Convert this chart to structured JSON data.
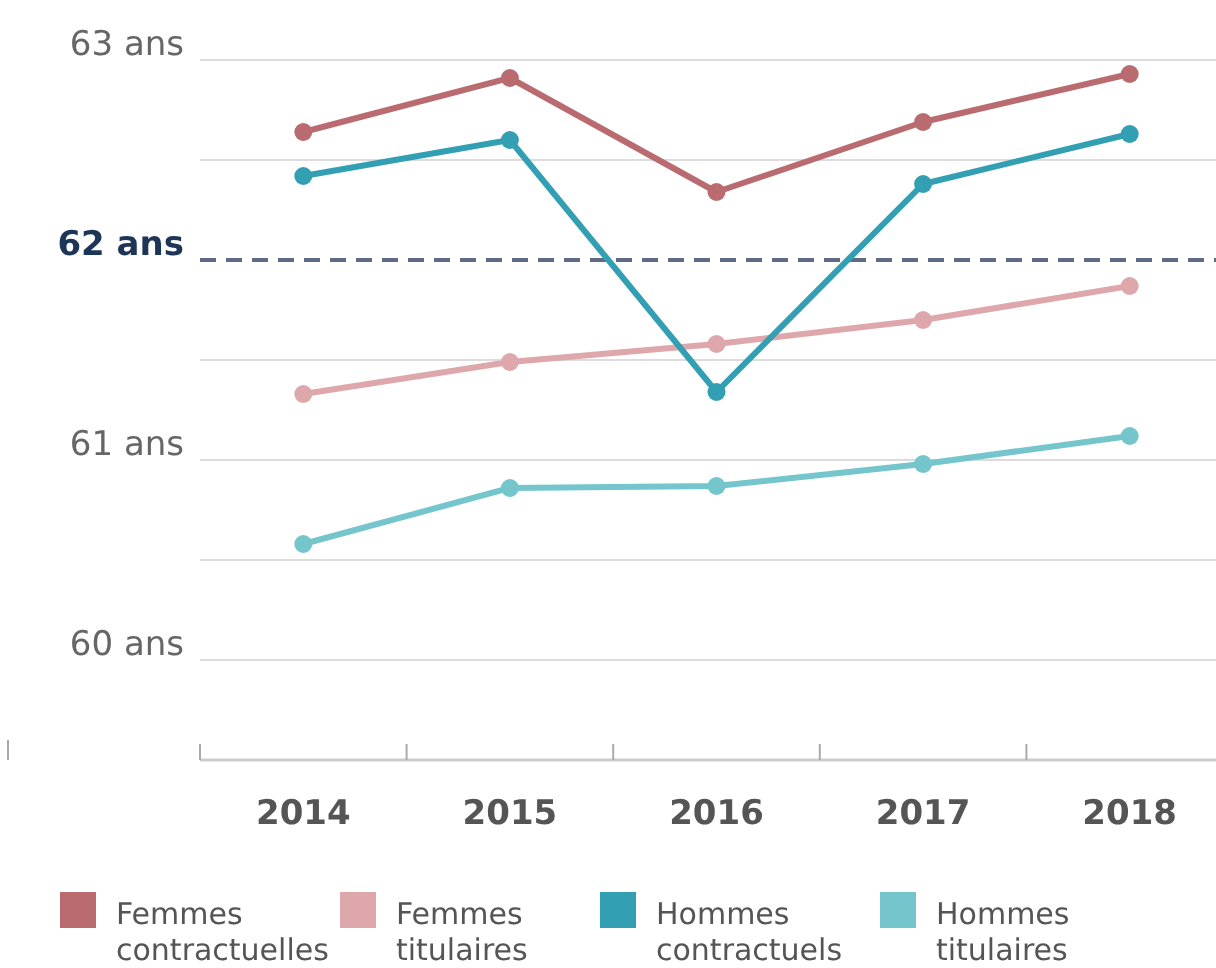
{
  "chart_data": {
    "type": "line",
    "categories": [
      "2014",
      "2015",
      "2016",
      "2017",
      "2018"
    ],
    "series": [
      {
        "name": "Femmes contractuelles",
        "color": "#b96b70",
        "values": [
          62.64,
          62.91,
          62.34,
          62.69,
          62.93
        ]
      },
      {
        "name": "Femmes titulaires",
        "color": "#dea7ab",
        "values": [
          61.33,
          61.49,
          61.58,
          61.7,
          61.87
        ]
      },
      {
        "name": "Hommes contractuels",
        "color": "#339fb3",
        "values": [
          62.42,
          62.6,
          61.34,
          62.38,
          62.63
        ]
      },
      {
        "name": "Hommes titulaires",
        "color": "#74c5cc",
        "values": [
          60.58,
          60.86,
          60.87,
          60.98,
          61.12
        ]
      }
    ],
    "ylim": [
      59.5,
      63
    ],
    "yticks": [
      {
        "value": 60,
        "label": "60 ans"
      },
      {
        "value": 60.5,
        "label": null
      },
      {
        "value": 61,
        "label": "61 ans"
      },
      {
        "value": 61.5,
        "label": null
      },
      {
        "value": 62.5,
        "label": null
      },
      {
        "value": 63,
        "label": "63 ans"
      }
    ],
    "ref_lines": [
      {
        "axis": "y",
        "value": 62,
        "label": "62 ans",
        "color": "#5f6b86",
        "line_style": "dashed"
      }
    ],
    "grid": "y",
    "legend": "bottom",
    "marker": "circle",
    "line_style": "solid"
  }
}
